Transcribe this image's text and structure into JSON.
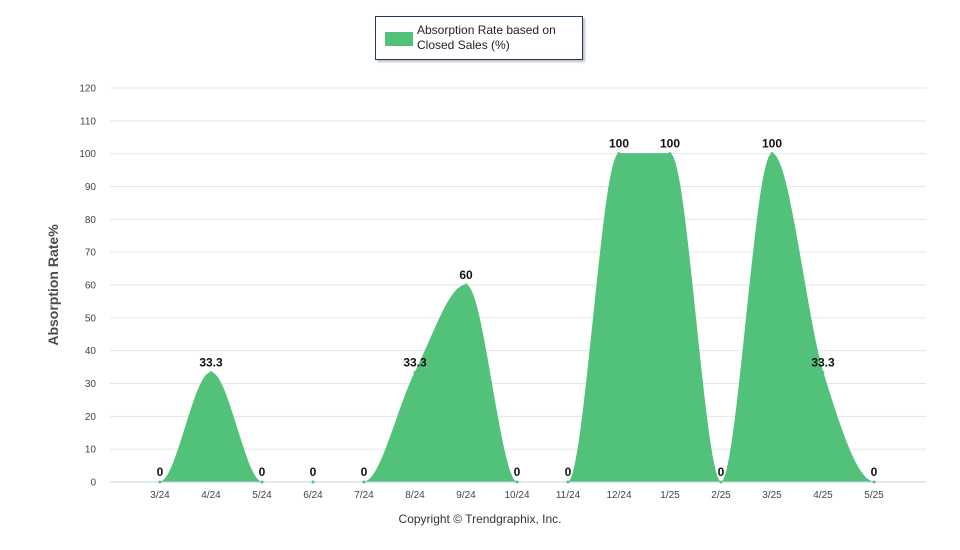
{
  "chart_data": {
    "type": "area",
    "categories": [
      "3/24",
      "4/24",
      "5/24",
      "6/24",
      "7/24",
      "8/24",
      "9/24",
      "10/24",
      "11/24",
      "12/24",
      "1/25",
      "2/25",
      "3/25",
      "4/25",
      "5/25"
    ],
    "series": [
      {
        "name": "Absorption Rate based on Closed Sales (%)",
        "values": [
          0,
          33.3,
          0,
          0,
          0,
          33.3,
          60,
          0,
          0,
          100,
          100,
          0,
          100,
          33.3,
          0
        ],
        "labels": [
          "0",
          "33.3",
          "0",
          "0",
          "0",
          "33.3",
          "60",
          "0",
          "0",
          "100",
          "100",
          "0",
          "100",
          "33.3",
          "0"
        ],
        "color": "#52c27a"
      }
    ],
    "ylabel": "Absorption Rate%",
    "xlabel": "",
    "ylim": [
      0,
      120
    ],
    "yticks": [
      0,
      10,
      20,
      30,
      40,
      50,
      60,
      70,
      80,
      90,
      100,
      110,
      120
    ],
    "grid": true,
    "legend_position": "top-center",
    "smooth": true
  },
  "legend": {
    "label": "Absorption Rate based on Closed Sales (%)"
  },
  "footer": {
    "copyright": "Copyright © Trendgraphix, Inc."
  },
  "colors": {
    "series": "#52c27a",
    "grid": "#e6e6e6",
    "axis": "#c0d0e0",
    "legend_border": "#1f3b57"
  }
}
